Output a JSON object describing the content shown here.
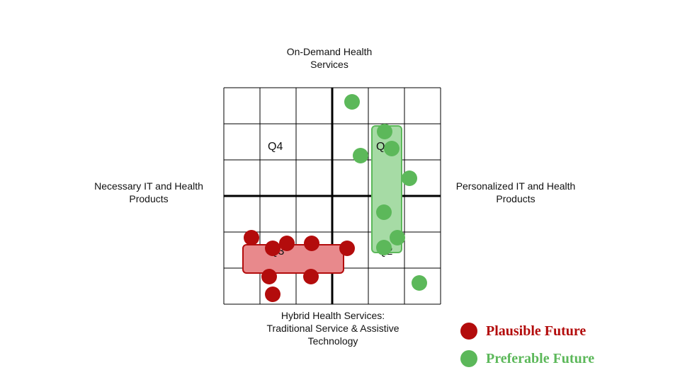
{
  "axes": {
    "top": "On-Demand Health\nServices",
    "bottom": "Hybrid Health Services:\nTraditional Service & Assistive\nTechnology",
    "left": "Necessary IT and Health\nProducts",
    "right": "Personalized IT and Health\nProducts"
  },
  "quadrants": {
    "q4": "Q4",
    "q1": "Q1",
    "q3": "Q3",
    "q2": "Q2"
  },
  "colors": {
    "plausible": "#b30c0c",
    "plausible_fill": "#e8898c",
    "plausible_stroke": "#b30c0c",
    "preferable": "#5cb85a",
    "preferable_fill": "#a6dba5",
    "preferable_stroke": "#5cb85a"
  },
  "legend": {
    "plausible": "Plausible Future",
    "preferable": "Preferable Future"
  }
}
